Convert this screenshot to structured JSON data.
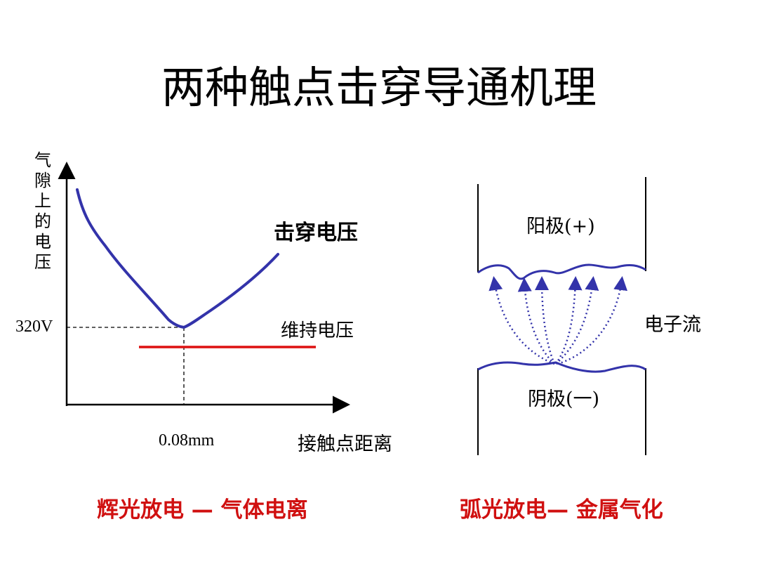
{
  "title": "两种触点击穿导通机理",
  "left": {
    "y_axis_label": [
      "气",
      "隙",
      "上",
      "的",
      "电",
      "压"
    ],
    "y_tick": "320V",
    "x_tick": "0.08mm",
    "x_axis_label": "接触点距离",
    "breakdown_label": "击穿电压",
    "sustain_label": "维持电压",
    "caption": "辉光放电 — 气体电离"
  },
  "right": {
    "anode_label": "阳极(+)",
    "cathode_label": "阴极(一)",
    "flow_label": "电子流",
    "caption": "弧光放电— 金属气化"
  },
  "colors": {
    "curve": "#3333aa",
    "sustain_line": "#dd1111",
    "caption": "#d01010"
  }
}
